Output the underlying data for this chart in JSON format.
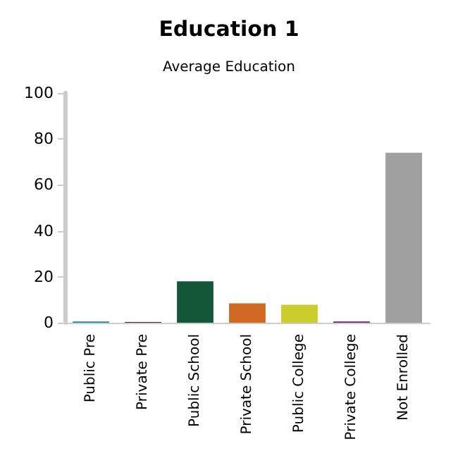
{
  "chart_data": {
    "type": "bar",
    "title": "Education 1",
    "subtitle": "Average Education",
    "categories": [
      "Public Pre",
      "Private Pre",
      "Public School",
      "Private School",
      "Public College",
      "Private College",
      "Not Enrolled"
    ],
    "values": [
      0.5,
      0.3,
      18,
      8.4,
      7.8,
      0.5,
      74
    ],
    "colors": [
      "#1e8a9c",
      "#7a1414",
      "#14583a",
      "#d06a22",
      "#cccc2c",
      "#7a1a6e",
      "#a0a0a0"
    ],
    "ylim": [
      0,
      100
    ],
    "yticks": [
      0,
      20,
      40,
      60,
      80,
      100
    ],
    "grid": false
  }
}
